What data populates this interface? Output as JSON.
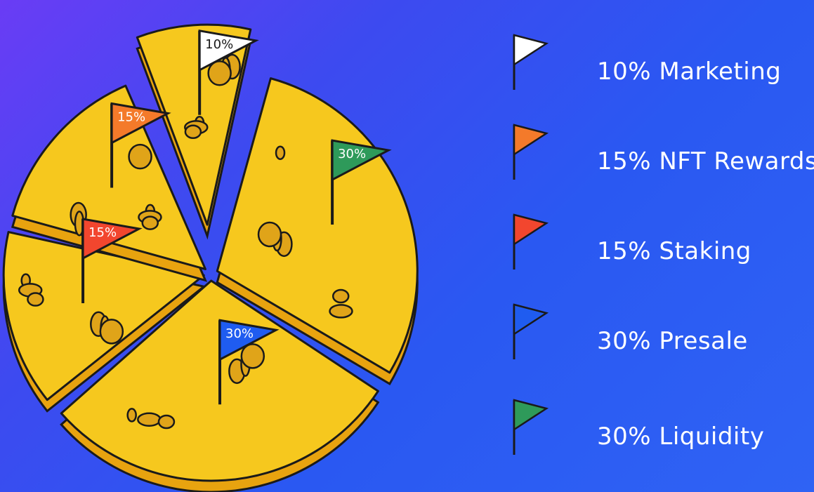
{
  "chart_data": {
    "type": "pie",
    "title": "",
    "slices": [
      {
        "label": "Marketing",
        "value": 10,
        "color": "#ffffff",
        "flag_text": "10%",
        "legend": "10% Marketing"
      },
      {
        "label": "NFT Rewards",
        "value": 15,
        "color": "#f47a2a",
        "flag_text": "15%",
        "legend": "15% NFT Rewards"
      },
      {
        "label": "Staking",
        "value": 15,
        "color": "#f2462e",
        "flag_text": "15%",
        "legend": "15% Staking"
      },
      {
        "label": "Presale",
        "value": 30,
        "color": "#1f5cf0",
        "flag_text": "30%",
        "legend": "30% Presale"
      },
      {
        "label": "Liquidity",
        "value": 30,
        "color": "#2e9a5a",
        "flag_text": "30%",
        "legend": "30% Liquidity"
      }
    ],
    "legend_position": "right"
  },
  "colors": {
    "cheese": "#f6c81e",
    "cheese_shadow": "#e8a30f",
    "hole": "#e0a419",
    "outline": "#1a1a1a"
  }
}
